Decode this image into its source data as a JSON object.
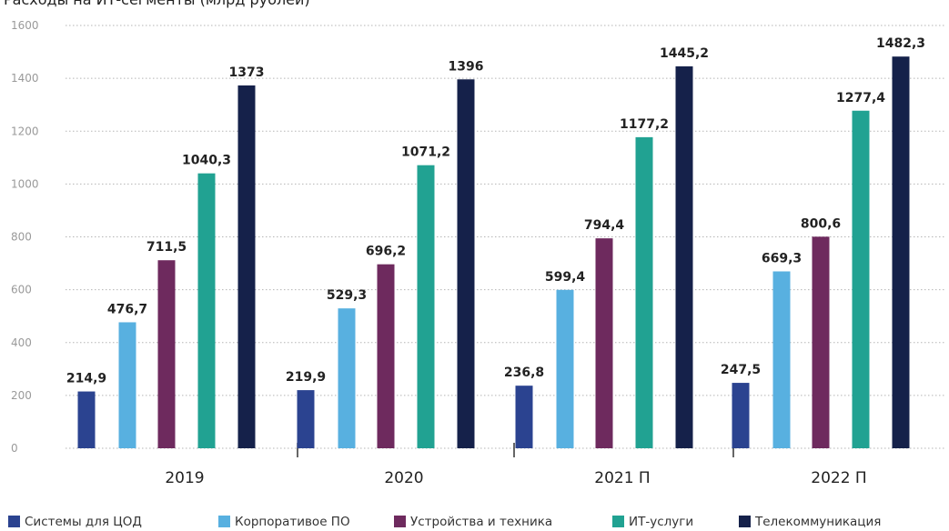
{
  "chart_data": {
    "type": "bar",
    "title": "Расходы на ИТ-сегменты (млрд рублей)",
    "xlabel": "",
    "ylabel": "",
    "categories": [
      "2019",
      "2020",
      "2021 П",
      "2022 П"
    ],
    "ylim": [
      0,
      1600
    ],
    "yticks": [
      0,
      200,
      400,
      600,
      800,
      1000,
      1200,
      1400,
      1600
    ],
    "grid": true,
    "legend_position": "bottom",
    "series": [
      {
        "name": "Системы для ЦОД",
        "color": "#2b4390",
        "values": [
          214.9,
          219.9,
          236.8,
          247.5
        ],
        "labels": [
          "214,9",
          "219,9",
          "236,8",
          "247,5"
        ]
      },
      {
        "name": "Корпоративое ПО",
        "color": "#58b0e0",
        "values": [
          476.7,
          529.3,
          599.4,
          669.3
        ],
        "labels": [
          "476,7",
          "529,3",
          "599,4",
          "669,3"
        ]
      },
      {
        "name": "Устройства и техника",
        "color": "#6e2a5e",
        "values": [
          711.5,
          696.2,
          794.4,
          800.6
        ],
        "labels": [
          "711,5",
          "696,2",
          "794,4",
          "800,6"
        ]
      },
      {
        "name": "ИТ-услуги",
        "color": "#21a292",
        "values": [
          1040.3,
          1071.2,
          1177.2,
          1277.4
        ],
        "labels": [
          "1040,3",
          "1071,2",
          "1177,2",
          "1277,4"
        ]
      },
      {
        "name": "Телекоммуникация",
        "color": "#15214a",
        "values": [
          1373,
          1396,
          1445.2,
          1482.3
        ],
        "labels": [
          "1373",
          "1396",
          "1445,2",
          "1482,3"
        ]
      }
    ]
  }
}
